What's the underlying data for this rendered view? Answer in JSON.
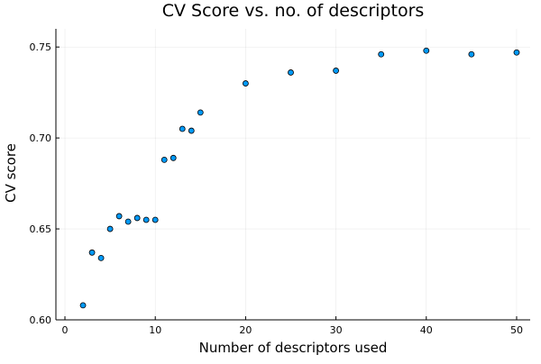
{
  "chart_data": {
    "type": "scatter",
    "title": "CV Score vs. no. of descriptors",
    "xlabel": "Number of descriptors used",
    "ylabel": "CV score",
    "xlim": [
      -1,
      51.5
    ],
    "ylim": [
      0.6,
      0.76
    ],
    "xticks": [
      0,
      10,
      20,
      30,
      40,
      50
    ],
    "yticks": [
      0.6,
      0.65,
      0.7,
      0.75
    ],
    "ytick_labels": [
      "0.60",
      "0.65",
      "0.70",
      "0.75"
    ],
    "grid": true,
    "legend": "none",
    "marker_color": "#009AFA",
    "series": [
      {
        "x": [
          2,
          3,
          4,
          5,
          6,
          7,
          8,
          9,
          10,
          11,
          12,
          13,
          14,
          15,
          20,
          25,
          30,
          35,
          40,
          45,
          50
        ],
        "y": [
          0.608,
          0.637,
          0.634,
          0.65,
          0.657,
          0.654,
          0.656,
          0.655,
          0.655,
          0.688,
          0.689,
          0.705,
          0.704,
          0.714,
          0.73,
          0.736,
          0.737,
          0.746,
          0.748,
          0.746,
          0.747
        ]
      }
    ]
  }
}
